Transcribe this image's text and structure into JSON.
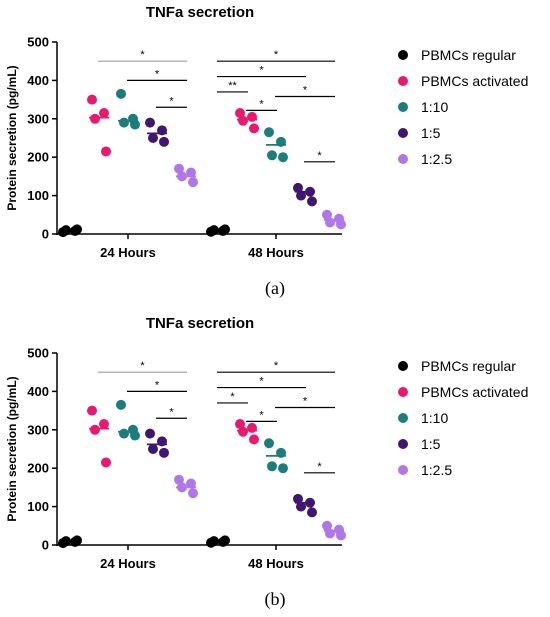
{
  "chart_data": [
    {
      "panel": "a",
      "type": "scatter",
      "title": "TNFa secretion",
      "ylabel": "Protein secretion (pg/mL)",
      "xlabel": "",
      "categories": [
        "24 Hours",
        "48 Hours"
      ],
      "ylim": [
        0,
        500
      ],
      "yticks": [
        0,
        100,
        200,
        300,
        400,
        500
      ],
      "legend_position": "right",
      "caption": "(a)",
      "series": [
        {
          "name": "PBMCs regular",
          "color": "#000000",
          "values": [
            [
              5,
              8,
              10,
              12
            ],
            [
              6,
              8,
              10,
              12
            ]
          ],
          "median": [
            9,
            9
          ]
        },
        {
          "name": "PBMCs activated",
          "color": "#e8196e",
          "values": [
            [
              350,
              315,
              300,
              215
            ],
            [
              315,
              305,
              295,
              275
            ]
          ],
          "median": [
            303,
            298
          ]
        },
        {
          "name": "1:10",
          "color": "#1b7d7c",
          "values": [
            [
              365,
              300,
              290,
              285
            ],
            [
              265,
              240,
              205,
              200
            ]
          ],
          "median": [
            295,
            232
          ]
        },
        {
          "name": "1:5",
          "color": "#3f1670",
          "values": [
            [
              290,
              270,
              250,
              240
            ],
            [
              120,
              110,
              100,
              85
            ]
          ],
          "median": [
            262,
            110
          ]
        },
        {
          "name": "1:2.5",
          "color": "#b077e8",
          "values": [
            [
              170,
              160,
              150,
              135
            ],
            [
              50,
              40,
              30,
              25
            ]
          ],
          "median": [
            150,
            37
          ]
        }
      ],
      "significance": [
        {
          "group": 0,
          "from": 1,
          "to": 4,
          "y": 450,
          "label": "*",
          "color": "#9e9e9e"
        },
        {
          "group": 0,
          "from": 2,
          "to": 4,
          "y": 400,
          "label": "*",
          "color": "#000000"
        },
        {
          "group": 0,
          "from": 3,
          "to": 4,
          "y": 330,
          "label": "*",
          "color": "#000000"
        },
        {
          "group": 1,
          "from": 0,
          "to": 4,
          "y": 450,
          "label": "*",
          "color": "#000000"
        },
        {
          "group": 1,
          "from": 0,
          "to": 3,
          "y": 410,
          "label": "*",
          "color": "#000000"
        },
        {
          "group": 1,
          "from": 0,
          "to": 1,
          "y": 370,
          "label": "**",
          "color": "#000000"
        },
        {
          "group": 1,
          "from": 1,
          "to": 2,
          "y": 322,
          "label": "*",
          "color": "#000000"
        },
        {
          "group": 1,
          "from": 2,
          "to": 4,
          "y": 358,
          "label": "*",
          "color": "#000000"
        },
        {
          "group": 1,
          "from": 3,
          "to": 4,
          "y": 188,
          "label": "*",
          "color": "#000000"
        }
      ]
    },
    {
      "panel": "b",
      "type": "scatter",
      "title": "TNFa secretion",
      "ylabel": "Protein secretion (pg/mL)",
      "xlabel": "",
      "categories": [
        "24 Hours",
        "48 Hours"
      ],
      "ylim": [
        0,
        500
      ],
      "yticks": [
        0,
        100,
        200,
        300,
        400,
        500
      ],
      "legend_position": "right",
      "caption": "(b)",
      "series": [
        {
          "name": "PBMCs regular",
          "color": "#000000",
          "values": [
            [
              5,
              8,
              10,
              12
            ],
            [
              6,
              8,
              10,
              12
            ]
          ],
          "median": [
            9,
            9
          ]
        },
        {
          "name": "PBMCs activated",
          "color": "#e8196e",
          "values": [
            [
              350,
              315,
              300,
              215
            ],
            [
              315,
              305,
              295,
              275
            ]
          ],
          "median": [
            303,
            298
          ]
        },
        {
          "name": "1:10",
          "color": "#1b7d7c",
          "values": [
            [
              365,
              300,
              290,
              285
            ],
            [
              265,
              240,
              205,
              200
            ]
          ],
          "median": [
            295,
            232
          ]
        },
        {
          "name": "1:5",
          "color": "#3f1670",
          "values": [
            [
              290,
              270,
              250,
              240
            ],
            [
              120,
              110,
              100,
              85
            ]
          ],
          "median": [
            262,
            110
          ]
        },
        {
          "name": "1:2.5",
          "color": "#b077e8",
          "values": [
            [
              170,
              160,
              150,
              135
            ],
            [
              50,
              40,
              30,
              25
            ]
          ],
          "median": [
            150,
            37
          ]
        }
      ],
      "significance": [
        {
          "group": 0,
          "from": 1,
          "to": 4,
          "y": 450,
          "label": "*",
          "color": "#9e9e9e"
        },
        {
          "group": 0,
          "from": 2,
          "to": 4,
          "y": 400,
          "label": "*",
          "color": "#000000"
        },
        {
          "group": 0,
          "from": 3,
          "to": 4,
          "y": 330,
          "label": "*",
          "color": "#000000"
        },
        {
          "group": 1,
          "from": 0,
          "to": 4,
          "y": 450,
          "label": "*",
          "color": "#000000"
        },
        {
          "group": 1,
          "from": 0,
          "to": 3,
          "y": 410,
          "label": "*",
          "color": "#000000"
        },
        {
          "group": 1,
          "from": 0,
          "to": 1,
          "y": 370,
          "label": "*",
          "color": "#000000"
        },
        {
          "group": 1,
          "from": 1,
          "to": 2,
          "y": 322,
          "label": "*",
          "color": "#000000"
        },
        {
          "group": 1,
          "from": 2,
          "to": 4,
          "y": 358,
          "label": "*",
          "color": "#000000"
        },
        {
          "group": 1,
          "from": 3,
          "to": 4,
          "y": 188,
          "label": "*",
          "color": "#000000"
        }
      ]
    }
  ]
}
